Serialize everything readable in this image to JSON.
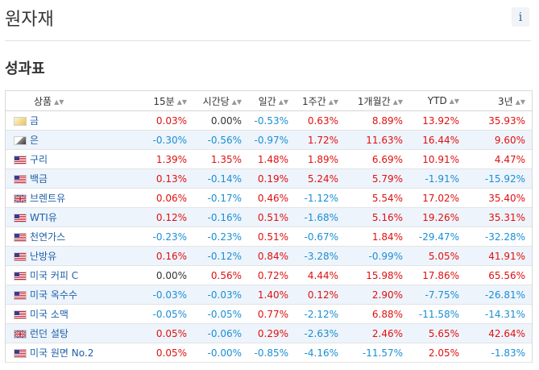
{
  "page": {
    "title": "원자재",
    "info_icon": "info-icon",
    "info_label": "i"
  },
  "section": {
    "title": "성과표"
  },
  "table": {
    "headers": [
      "상품",
      "15분",
      "시간당",
      "일간",
      "1주간",
      "1개월간",
      "YTD",
      "3년"
    ],
    "sort_icon": "sort-arrows-icon",
    "sort_glyph": "▲▼",
    "rows": [
      {
        "flag": "gold-icon",
        "name": "금",
        "values": [
          "0.03%",
          "0.00%",
          "-0.53%",
          "0.63%",
          "8.89%",
          "13.92%",
          "35.93%"
        ]
      },
      {
        "flag": "silver-icon",
        "name": "은",
        "values": [
          "-0.30%",
          "-0.56%",
          "-0.97%",
          "1.72%",
          "11.63%",
          "16.44%",
          "9.60%"
        ]
      },
      {
        "flag": "us-flag-icon",
        "name": "구리",
        "values": [
          "1.39%",
          "1.35%",
          "1.48%",
          "1.89%",
          "6.69%",
          "10.91%",
          "4.47%"
        ]
      },
      {
        "flag": "us-flag-icon",
        "name": "백금",
        "values": [
          "0.13%",
          "-0.14%",
          "0.19%",
          "5.24%",
          "5.79%",
          "-1.91%",
          "-15.92%"
        ]
      },
      {
        "flag": "uk-flag-icon",
        "name": "브렌트유",
        "values": [
          "0.06%",
          "-0.17%",
          "0.46%",
          "-1.12%",
          "5.54%",
          "17.02%",
          "35.40%"
        ]
      },
      {
        "flag": "us-flag-icon",
        "name": "WTI유",
        "values": [
          "0.12%",
          "-0.16%",
          "0.51%",
          "-1.68%",
          "5.16%",
          "19.26%",
          "35.31%"
        ]
      },
      {
        "flag": "us-flag-icon",
        "name": "천연가스",
        "values": [
          "-0.23%",
          "-0.23%",
          "0.51%",
          "-0.67%",
          "1.84%",
          "-29.47%",
          "-32.28%"
        ]
      },
      {
        "flag": "us-flag-icon",
        "name": "난방유",
        "values": [
          "0.16%",
          "-0.12%",
          "0.84%",
          "-3.28%",
          "-0.99%",
          "5.05%",
          "41.91%"
        ]
      },
      {
        "flag": "us-flag-icon",
        "name": "미국 커피 C",
        "values": [
          "0.00%",
          "0.56%",
          "0.72%",
          "4.44%",
          "15.98%",
          "17.86%",
          "65.56%"
        ]
      },
      {
        "flag": "us-flag-icon",
        "name": "미국 옥수수",
        "values": [
          "-0.03%",
          "-0.03%",
          "1.40%",
          "0.12%",
          "2.90%",
          "-7.75%",
          "-26.81%"
        ]
      },
      {
        "flag": "us-flag-icon",
        "name": "미국 소맥",
        "values": [
          "-0.05%",
          "-0.05%",
          "0.77%",
          "-2.12%",
          "6.88%",
          "-11.58%",
          "-14.31%"
        ]
      },
      {
        "flag": "uk-flag-icon",
        "name": "런던 설탕",
        "values": [
          "0.05%",
          "-0.06%",
          "0.29%",
          "-2.63%",
          "2.46%",
          "5.65%",
          "42.64%"
        ]
      },
      {
        "flag": "us-flag-icon",
        "name": "미국 원면 No.2",
        "values": [
          "0.05%",
          "-0.00%",
          "-0.85%",
          "-4.16%",
          "-11.57%",
          "2.05%",
          "-1.83%"
        ]
      }
    ]
  },
  "colors": {
    "positive": "#e01010",
    "negative": "#1a8fd4",
    "neutral": "#333333",
    "link": "#1f5fa8",
    "row_alt": "#eef4fb"
  }
}
